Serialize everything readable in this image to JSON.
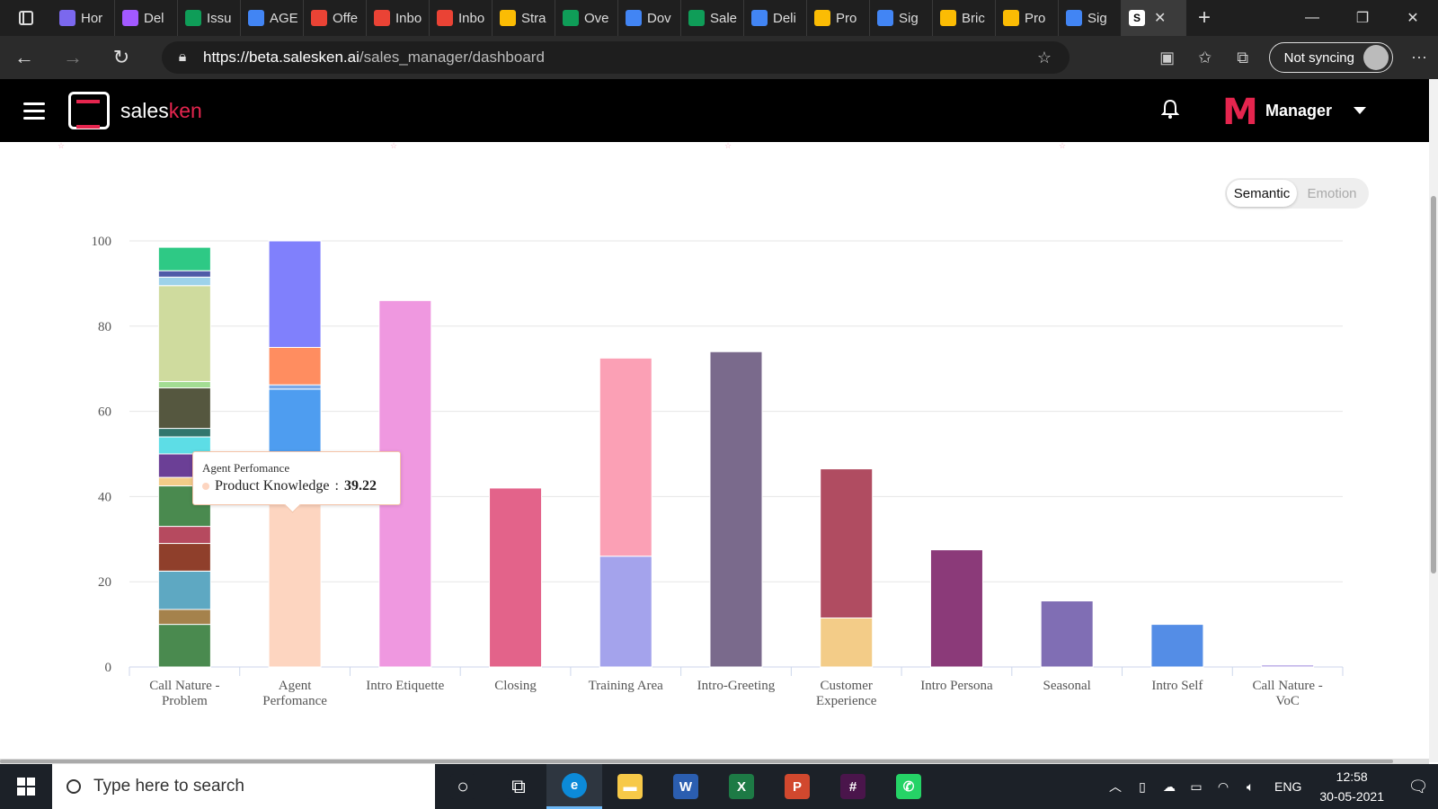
{
  "browser": {
    "tabs": [
      {
        "label": "Hor",
        "icon": "clickup-icon",
        "color": "#7b68ee"
      },
      {
        "label": "Del",
        "icon": "clickup-icon",
        "color": "#a259ff"
      },
      {
        "label": "Issu",
        "icon": "sheets-icon",
        "color": "#0f9d58"
      },
      {
        "label": "AGE",
        "icon": "docs-icon",
        "color": "#4285f4"
      },
      {
        "label": "Offe",
        "icon": "gmail-icon",
        "color": "#ea4335"
      },
      {
        "label": "Inbo",
        "icon": "gmail-icon",
        "color": "#ea4335"
      },
      {
        "label": "Inbo",
        "icon": "gmail-icon",
        "color": "#ea4335"
      },
      {
        "label": "Stra",
        "icon": "drive-icon",
        "color": "#fbbc04"
      },
      {
        "label": "Ove",
        "icon": "sheets-icon",
        "color": "#0f9d58"
      },
      {
        "label": "Dov",
        "icon": "docs-icon",
        "color": "#4285f4"
      },
      {
        "label": "Sale",
        "icon": "sheets-icon",
        "color": "#0f9d58"
      },
      {
        "label": "Deli",
        "icon": "docs-icon",
        "color": "#4285f4"
      },
      {
        "label": "Pro",
        "icon": "drive-icon",
        "color": "#fbbc04"
      },
      {
        "label": "Sig",
        "icon": "docs-icon",
        "color": "#4285f4"
      },
      {
        "label": "Bric",
        "icon": "drive-icon",
        "color": "#fbbc04"
      },
      {
        "label": "Pro",
        "icon": "drive-icon",
        "color": "#fbbc04"
      },
      {
        "label": "Sig",
        "icon": "docs-icon",
        "color": "#4285f4"
      }
    ],
    "url_host": "https://beta.salesken.ai",
    "url_path": "/sales_manager/dashboard",
    "sync_label": "Not syncing"
  },
  "app": {
    "brand_prefix": "sales",
    "brand_suffix": "ken",
    "user_initial": "M",
    "user_role": "Manager",
    "accent": "#e5254e"
  },
  "toggle": {
    "options": [
      "Semantic",
      "Emotion"
    ],
    "selected": "Semantic"
  },
  "chart_data": {
    "type": "bar",
    "stacked": true,
    "ylim": [
      0,
      100
    ],
    "yticks": [
      0,
      20,
      40,
      60,
      80,
      100
    ],
    "grid": true,
    "categories": [
      "Call Nature - Problem",
      "Agent Perfomance",
      "Intro Etiquette",
      "Closing",
      "Training Area",
      "Intro-Greeting",
      "Customer Experience",
      "Intro Persona",
      "Seasonal",
      "Intro Self",
      "Call Nature - VoC"
    ],
    "category_lines": [
      [
        "Call Nature -",
        "Problem"
      ],
      [
        "Agent",
        "Perfomance"
      ],
      [
        "Intro Etiquette"
      ],
      [
        "Closing"
      ],
      [
        "Training Area"
      ],
      [
        "Intro-Greeting"
      ],
      [
        "Customer",
        "Experience"
      ],
      [
        "Intro Persona"
      ],
      [
        "Seasonal"
      ],
      [
        "Intro Self"
      ],
      [
        "Call Nature -",
        "VoC"
      ]
    ],
    "stacks": [
      [
        {
          "value": 10,
          "color": "#4a8a4f"
        },
        {
          "value": 3.5,
          "color": "#a5824c"
        },
        {
          "value": 9,
          "color": "#5ea8c2"
        },
        {
          "value": 6.5,
          "color": "#8f3f2b"
        },
        {
          "value": 4,
          "color": "#b64a5f"
        },
        {
          "value": 9.5,
          "color": "#4a8a4f"
        },
        {
          "value": 2,
          "color": "#f3cc88"
        },
        {
          "value": 5.5,
          "color": "#6b3f96"
        },
        {
          "value": 4,
          "color": "#5ddde6"
        },
        {
          "value": 2,
          "color": "#32766d"
        },
        {
          "value": 9.5,
          "color": "#55573f"
        },
        {
          "value": 1.5,
          "color": "#a3dd93"
        },
        {
          "value": 22.5,
          "color": "#cfdb9e"
        },
        {
          "value": 2,
          "color": "#9dd2ea"
        },
        {
          "value": 1.5,
          "color": "#4f5ba8"
        },
        {
          "value": 5.5,
          "color": "#2ec985"
        }
      ],
      [
        {
          "value": 39.22,
          "color": "#fdd5c0",
          "name": "Product Knowledge"
        },
        {
          "value": 26,
          "color": "#4e9df0"
        },
        {
          "value": 1,
          "color": "#7aa8e6"
        },
        {
          "value": 8.78,
          "color": "#ff8d60"
        },
        {
          "value": 25,
          "color": "#8080fc"
        }
      ],
      [
        {
          "value": 86,
          "color": "#ef98e0"
        }
      ],
      [
        {
          "value": 42,
          "color": "#e3638a"
        }
      ],
      [
        {
          "value": 26,
          "color": "#a4a3ec"
        },
        {
          "value": 46.5,
          "color": "#fba0b5"
        }
      ],
      [
        {
          "value": 74,
          "color": "#7a6a8c"
        }
      ],
      [
        {
          "value": 11.5,
          "color": "#f3cc88"
        },
        {
          "value": 35,
          "color": "#b04c61"
        }
      ],
      [
        {
          "value": 27.5,
          "color": "#8b3a79"
        }
      ],
      [
        {
          "value": 15.5,
          "color": "#806eb4"
        }
      ],
      [
        {
          "value": 10,
          "color": "#548de6"
        }
      ],
      [
        {
          "value": 0.5,
          "color": "#b8a8e6"
        }
      ]
    ]
  },
  "tooltip": {
    "title": "Agent Perfomance",
    "series": "Product Knowledge",
    "value": "39.22"
  },
  "taskbar": {
    "search_placeholder": "Type here to search",
    "apps": [
      {
        "name": "cortana-icon",
        "color": "#1c2128",
        "glyph": "○"
      },
      {
        "name": "task-view-icon",
        "color": "#1c2128",
        "glyph": "⧉"
      },
      {
        "name": "edge-icon",
        "color": "#0c8ad8",
        "glyph": "e"
      },
      {
        "name": "explorer-icon",
        "color": "#f7c948",
        "glyph": "▬"
      },
      {
        "name": "word-icon",
        "color": "#2b5eb0",
        "glyph": "W"
      },
      {
        "name": "excel-icon",
        "color": "#1d7a45",
        "glyph": "X"
      },
      {
        "name": "powerpoint-icon",
        "color": "#d1482e",
        "glyph": "P"
      },
      {
        "name": "slack-icon",
        "color": "#4a154b",
        "glyph": "#"
      },
      {
        "name": "whatsapp-icon",
        "color": "#25d366",
        "glyph": "✆"
      }
    ],
    "language": "ENG",
    "time": "12:58",
    "date": "30-05-2021"
  }
}
